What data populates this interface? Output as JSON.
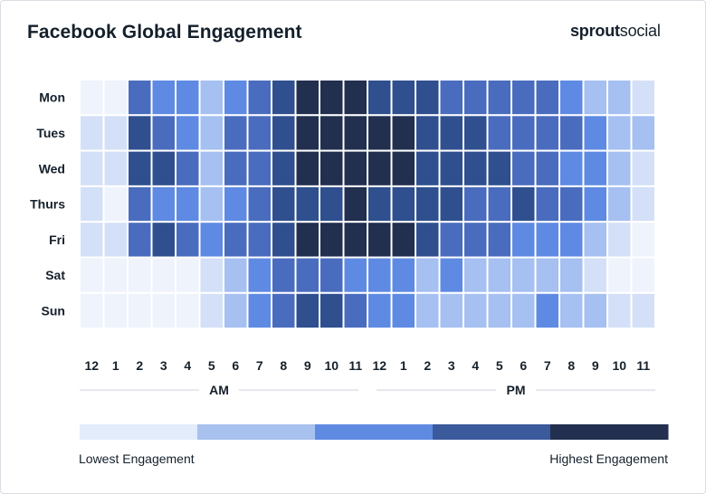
{
  "header": {
    "title": "Facebook Global Engagement",
    "brand_bold": "sprout",
    "brand_light": "social"
  },
  "chart_data": {
    "type": "heatmap",
    "title": "Facebook Global Engagement",
    "rows": [
      "Mon",
      "Tues",
      "Wed",
      "Thurs",
      "Fri",
      "Sat",
      "Sun"
    ],
    "columns": [
      "12",
      "1",
      "2",
      "3",
      "4",
      "5",
      "6",
      "7",
      "8",
      "9",
      "10",
      "11",
      "12",
      "1",
      "2",
      "3",
      "4",
      "5",
      "6",
      "7",
      "8",
      "9",
      "10",
      "11"
    ],
    "period_labels": [
      "AM",
      "PM"
    ],
    "scale": {
      "levels": [
        0,
        1,
        2,
        3,
        4,
        5
      ],
      "colors": [
        "#eef3fc",
        "#d4e0f7",
        "#a5c0f1",
        "#5e8ae3",
        "#4a6cbf",
        "#2f4f8f",
        "#222f4f"
      ],
      "legend_colors": [
        "#e3ecfb",
        "#a8c1ee",
        "#5f8ae2",
        "#3b5a9c",
        "#222f4f"
      ],
      "low_label": "Lowest Engagement",
      "high_label": "Highest Engagement"
    },
    "values": [
      [
        0,
        0,
        3.5,
        3,
        3,
        2,
        3,
        3.5,
        4.5,
        6,
        6,
        6,
        4.5,
        5,
        4.5,
        4,
        3.5,
        4,
        3.5,
        3.5,
        3,
        2,
        2,
        1
      ],
      [
        1,
        1,
        5,
        4,
        3,
        2,
        3.5,
        4,
        4.5,
        6,
        6,
        6,
        6,
        6,
        4.5,
        4.5,
        4.5,
        4,
        3.5,
        3.5,
        3.5,
        3,
        2,
        2
      ],
      [
        1,
        1,
        5,
        4.5,
        3.5,
        2,
        3.5,
        4,
        4.5,
        6,
        6,
        6,
        6,
        6,
        4.5,
        4.5,
        4.5,
        4.5,
        3.5,
        3.5,
        3,
        3,
        2,
        1
      ],
      [
        1,
        0,
        3.5,
        3,
        3,
        2,
        3,
        3.5,
        4.5,
        5,
        5,
        6,
        4.5,
        5,
        4.5,
        4.5,
        4,
        3.5,
        5,
        3.5,
        3.5,
        3,
        2,
        1
      ],
      [
        1,
        1,
        3.5,
        4.5,
        3.5,
        3,
        3.5,
        4,
        4.5,
        6,
        6,
        6,
        6,
        6,
        4.5,
        3.5,
        3.5,
        3.5,
        3,
        3,
        3,
        2,
        1,
        0
      ],
      [
        0,
        0,
        0,
        0,
        0,
        1,
        2,
        3,
        3.5,
        3.5,
        3.5,
        3,
        3,
        3,
        2,
        3,
        2,
        2,
        2,
        2,
        2,
        1,
        0,
        0
      ],
      [
        0,
        0,
        0,
        0,
        0,
        1,
        2,
        3,
        3.5,
        4.5,
        4.5,
        3.5,
        3,
        3,
        2,
        2,
        2,
        2,
        2,
        3,
        2,
        2,
        1,
        1
      ]
    ]
  }
}
